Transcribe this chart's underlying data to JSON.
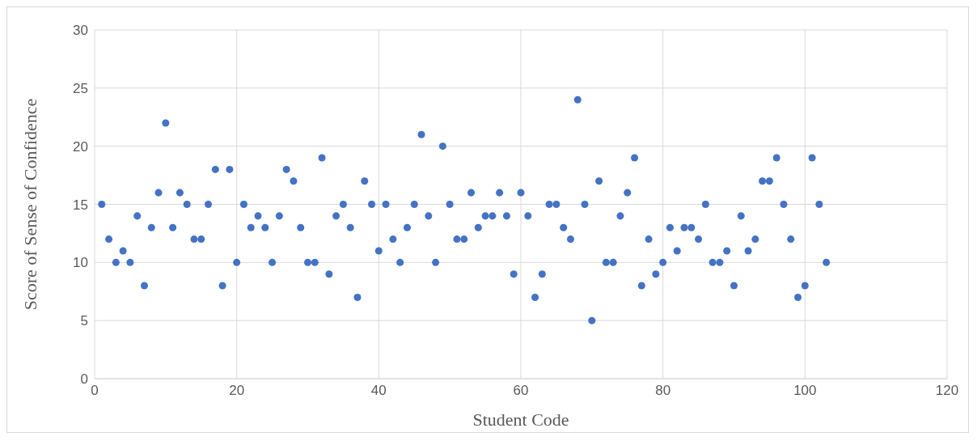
{
  "chart_data": {
    "type": "scatter",
    "xlabel": "Student Code",
    "ylabel": "Score of Sense of Confidence",
    "x": [
      1,
      2,
      3,
      4,
      5,
      6,
      7,
      8,
      9,
      10,
      11,
      12,
      13,
      14,
      15,
      16,
      17,
      18,
      19,
      20,
      21,
      22,
      23,
      24,
      25,
      26,
      27,
      28,
      29,
      30,
      31,
      32,
      33,
      34,
      35,
      36,
      37,
      38,
      39,
      40,
      41,
      42,
      43,
      44,
      45,
      46,
      47,
      48,
      49,
      50,
      51,
      52,
      53,
      54,
      55,
      56,
      57,
      58,
      59,
      60,
      61,
      62,
      63,
      64,
      65,
      66,
      67,
      68,
      69,
      70,
      71,
      72,
      73,
      74,
      75,
      76,
      77,
      78,
      79,
      80,
      81,
      82,
      83,
      84,
      85,
      86,
      87,
      88,
      89,
      90,
      91,
      92,
      93,
      94,
      95,
      96,
      97,
      98,
      99,
      100,
      101,
      102,
      103
    ],
    "values": [
      15,
      12,
      10,
      11,
      10,
      14,
      8,
      13,
      16,
      22,
      13,
      16,
      15,
      12,
      12,
      15,
      18,
      8,
      18,
      10,
      15,
      13,
      14,
      13,
      10,
      14,
      18,
      17,
      13,
      10,
      10,
      19,
      9,
      14,
      15,
      13,
      7,
      17,
      15,
      11,
      15,
      12,
      10,
      13,
      15,
      21,
      14,
      10,
      20,
      15,
      12,
      12,
      16,
      13,
      14,
      14,
      16,
      14,
      9,
      16,
      14,
      7,
      9,
      15,
      15,
      13,
      12,
      24,
      15,
      5,
      17,
      10,
      10,
      14,
      16,
      19,
      8,
      12,
      9,
      10,
      13,
      11,
      13,
      13,
      12,
      15,
      10,
      10,
      11,
      8,
      14,
      11,
      12,
      17,
      17,
      19,
      15,
      12,
      7,
      8,
      19,
      15,
      10
    ],
    "color": "#4472c4",
    "marker": "circle",
    "xlim": [
      0,
      120
    ],
    "xticks": [
      0,
      20,
      40,
      60,
      80,
      100,
      120
    ],
    "ylim": [
      0,
      30
    ],
    "yticks": [
      0,
      5,
      10,
      15,
      20,
      25,
      30
    ],
    "grid": true
  }
}
